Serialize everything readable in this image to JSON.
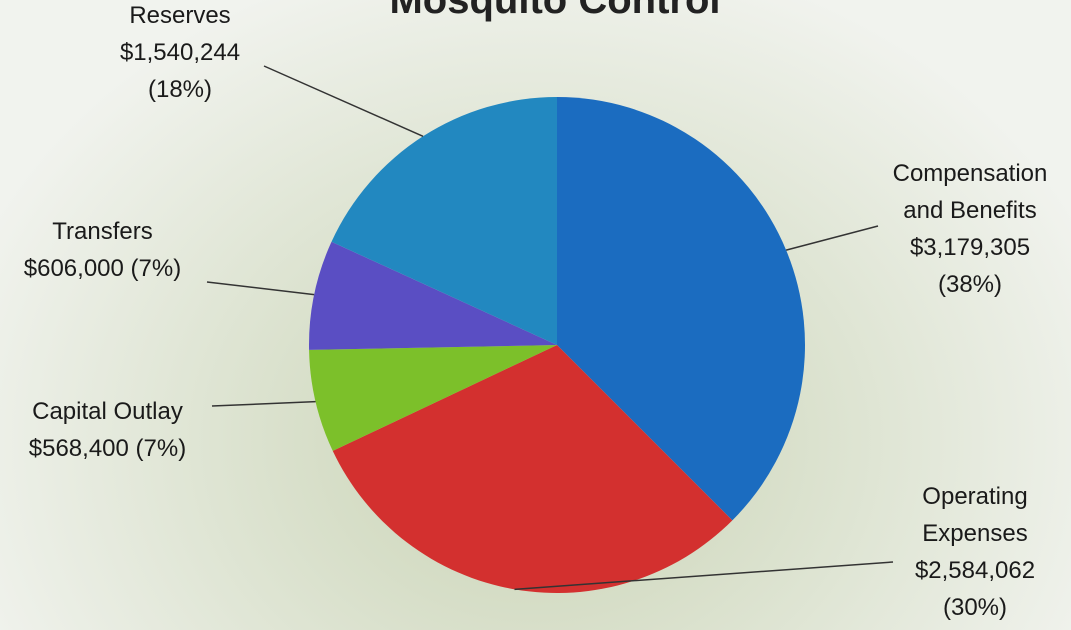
{
  "chart_data": {
    "type": "pie",
    "title": "Mosquito Control",
    "categories": [
      "Compensation and Benefits",
      "Operating Expenses",
      "Capital Outlay",
      "Transfers",
      "Reserves"
    ],
    "values": [
      3179305,
      2584062,
      568400,
      606000,
      1540244
    ],
    "value_labels": [
      "$3,179,305",
      "$2,584,062",
      "$568,400",
      "$606,000",
      "$1,540,244"
    ],
    "percent_labels": [
      "(38%)",
      "(30%)",
      "(7%)",
      "(7%)",
      "(18%)"
    ],
    "colors": [
      "#1b6cc0",
      "#d3302f",
      "#7cc02a",
      "#5a4ec3",
      "#2288c0"
    ]
  }
}
